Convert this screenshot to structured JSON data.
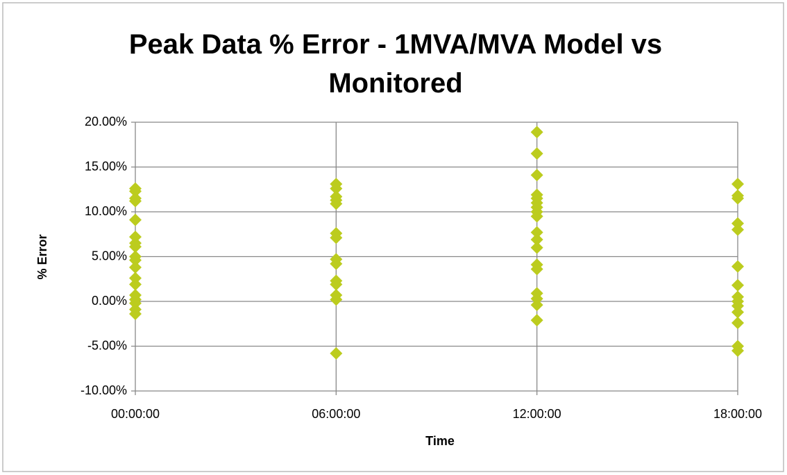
{
  "chart_data": {
    "type": "scatter",
    "title": "Peak Data % Error - 1MVA/MVA Model vs Monitored",
    "x_label": "Time",
    "y_label": "% Error",
    "xlim": [
      0,
      18
    ],
    "xticks": [
      {
        "value": 0,
        "label": "00:00:00"
      },
      {
        "value": 6,
        "label": "06:00:00"
      },
      {
        "value": 12,
        "label": "12:00:00"
      },
      {
        "value": 18,
        "label": "18:00:00"
      }
    ],
    "ylim": [
      -10,
      20
    ],
    "yticks": [
      {
        "value": -10,
        "label": "-10.00%"
      },
      {
        "value": -5,
        "label": "-5.00%"
      },
      {
        "value": 0,
        "label": "0.00%"
      },
      {
        "value": 5,
        "label": "5.00%"
      },
      {
        "value": 10,
        "label": "10.00%"
      },
      {
        "value": 15,
        "label": "15.00%"
      },
      {
        "value": 20,
        "label": "20.00%"
      }
    ],
    "grid": true,
    "series": [
      {
        "color": "#bccc1e",
        "x": [
          0,
          0,
          0,
          0,
          0,
          0,
          0,
          0,
          0,
          0,
          0,
          0,
          0,
          0,
          0,
          0,
          0,
          0,
          6,
          6,
          6,
          6,
          6,
          6,
          6,
          6,
          6,
          6,
          6,
          6,
          6,
          6,
          12,
          12,
          12,
          12,
          12,
          12,
          12,
          12,
          12,
          12,
          12,
          12,
          12,
          12,
          12,
          12,
          12,
          12,
          18,
          18,
          18,
          18,
          18,
          18,
          18,
          18,
          18,
          18,
          18,
          18,
          18,
          18
        ],
        "values": [
          12.6,
          12.3,
          11.5,
          11.2,
          9.1,
          7.2,
          6.5,
          6.1,
          5.0,
          4.6,
          3.8,
          2.6,
          1.9,
          0.7,
          0.2,
          -0.2,
          -0.9,
          -1.4,
          13.1,
          12.6,
          11.7,
          11.3,
          10.9,
          7.6,
          7.1,
          4.7,
          4.2,
          2.3,
          1.9,
          0.7,
          0.2,
          -5.8,
          18.9,
          16.5,
          14.1,
          11.9,
          11.5,
          11.0,
          10.5,
          10.0,
          9.5,
          7.7,
          6.9,
          6.0,
          4.1,
          3.6,
          0.9,
          0.3,
          -0.4,
          -2.1,
          13.1,
          11.8,
          11.5,
          8.7,
          8.0,
          3.9,
          1.8,
          0.5,
          0.0,
          -0.5,
          -1.2,
          -2.4,
          -5.0,
          -5.5
        ]
      }
    ]
  }
}
